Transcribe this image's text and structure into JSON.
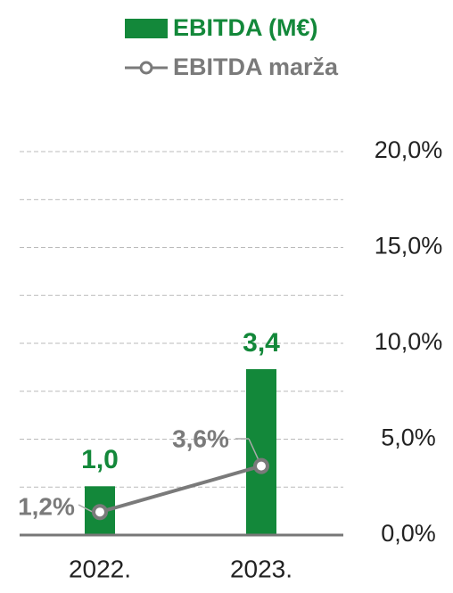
{
  "chart_data": {
    "type": "bar",
    "categories": [
      "2022.",
      "2023."
    ],
    "series": [
      {
        "name": "EBITDA (M€)",
        "type": "bar",
        "color": "#13883a",
        "values": [
          1.0,
          3.4
        ],
        "value_labels": [
          "1,0",
          "3,4"
        ]
      },
      {
        "name": "EBITDA marža",
        "type": "line",
        "axis": "y2",
        "color": "#7a7a7a",
        "values": [
          1.2,
          3.6
        ],
        "value_labels": [
          "1,2%",
          "3,6%"
        ]
      }
    ],
    "ylim": [
      0,
      7.86
    ],
    "y2lim": [
      0,
      20
    ],
    "y2ticks": [
      {
        "value": 0,
        "label": "0,0%"
      },
      {
        "value": 5,
        "label": "5,0%"
      },
      {
        "value": 10,
        "label": "10,0%"
      },
      {
        "value": 15,
        "label": "15,0%"
      },
      {
        "value": 20,
        "label": "20,0%"
      }
    ],
    "y2minor": [
      2.5,
      7.5,
      12.5,
      17.5
    ],
    "grid": true,
    "legend": "top"
  }
}
